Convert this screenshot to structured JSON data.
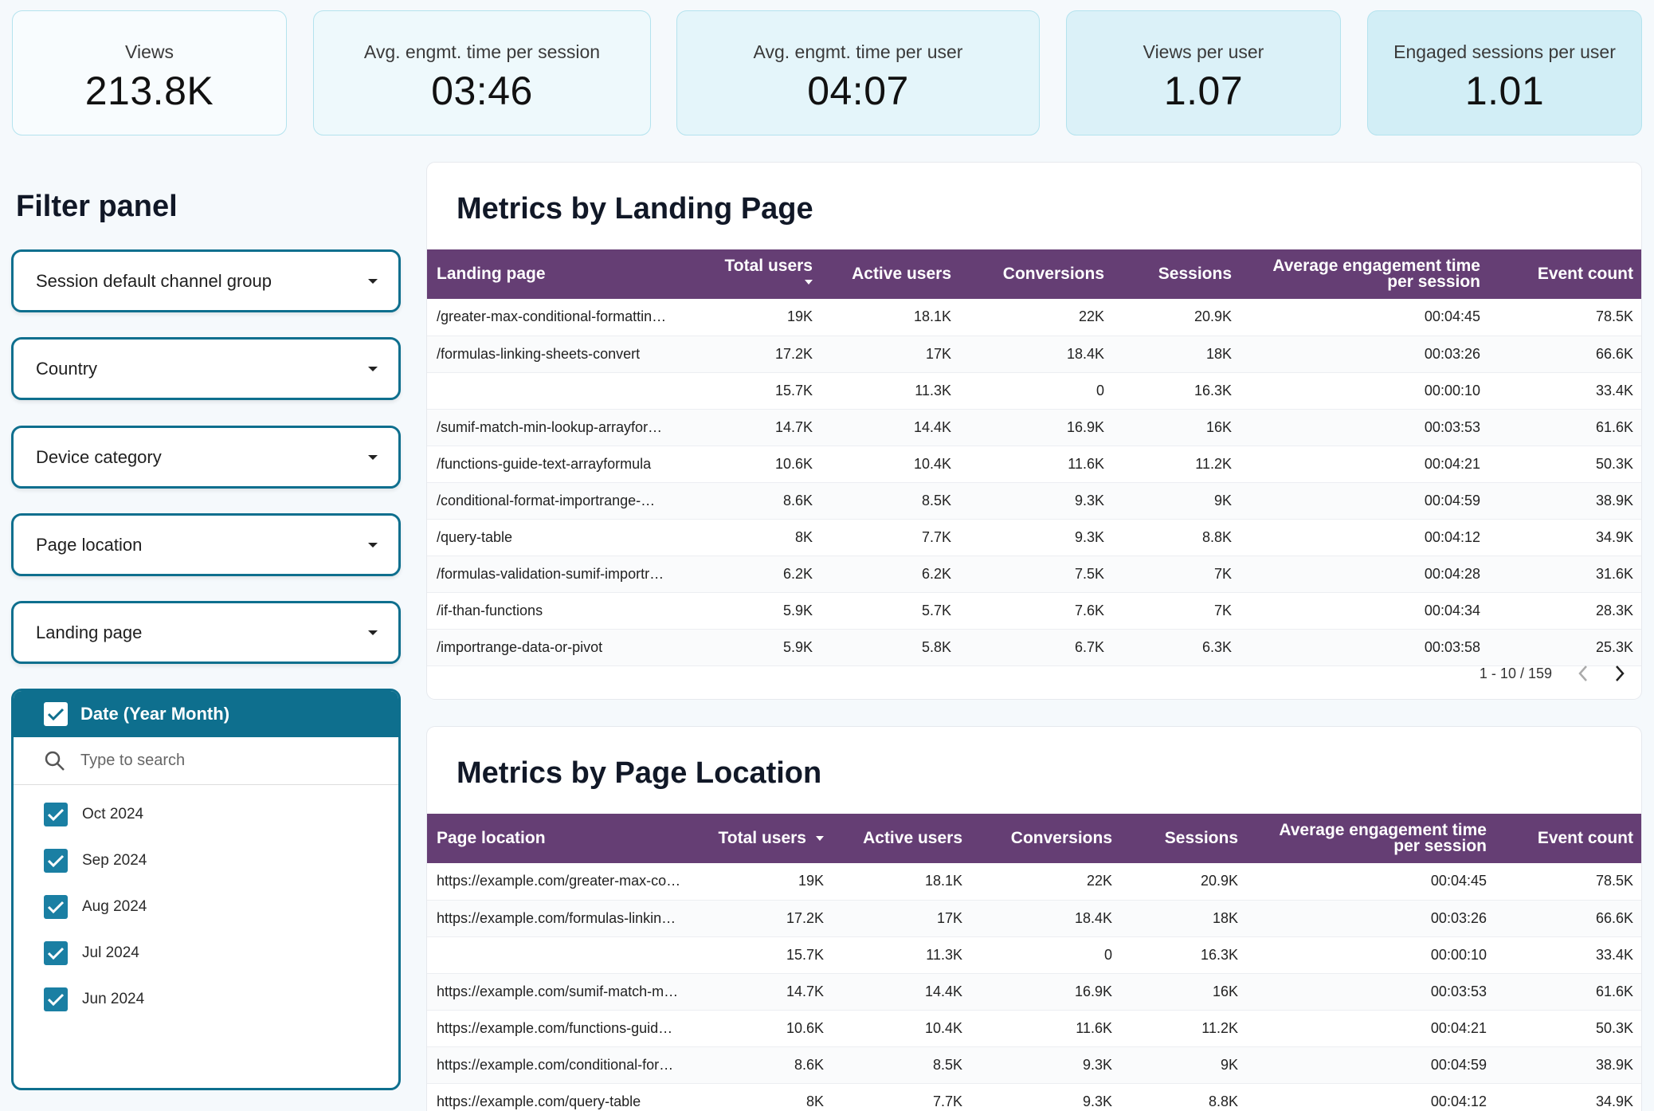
{
  "kpis": [
    {
      "label": "Views",
      "value": "213.8K",
      "color": "#f8fcfe"
    },
    {
      "label": "Avg. engmt. time per session",
      "value": "03:46",
      "color": "#eef9fc"
    },
    {
      "label": "Avg. engmt. time per user",
      "value": "04:07",
      "color": "#e4f5fa"
    },
    {
      "label": "Views per user",
      "value": "1.07",
      "color": "#dbf1f8"
    },
    {
      "label": "Engaged sessions per user",
      "value": "1.01",
      "color": "#d2eef6"
    }
  ],
  "filter_panel": {
    "title": "Filter panel",
    "dropdowns": [
      "Session default channel group",
      "Country",
      "Device category",
      "Page location",
      "Landing page"
    ],
    "date": {
      "header": "Date (Year Month)",
      "search_placeholder": "Type to search",
      "options": [
        "Oct 2024",
        "Sep 2024",
        "Aug 2024",
        "Jul 2024",
        "Jun 2024"
      ]
    }
  },
  "landing_table": {
    "title": "Metrics by Landing Page",
    "columns": [
      "Landing page",
      "Total users",
      "Active users",
      "Conversions",
      "Sessions",
      "Average engagement time per session",
      "Event count"
    ],
    "rows": [
      [
        "/greater-max-conditional-formattin…",
        "19K",
        "18.1K",
        "22K",
        "20.9K",
        "00:04:45",
        "78.5K"
      ],
      [
        "/formulas-linking-sheets-convert",
        "17.2K",
        "17K",
        "18.4K",
        "18K",
        "00:03:26",
        "66.6K"
      ],
      [
        "",
        "15.7K",
        "11.3K",
        "0",
        "16.3K",
        "00:00:10",
        "33.4K"
      ],
      [
        "/sumif-match-min-lookup-arrayfor…",
        "14.7K",
        "14.4K",
        "16.9K",
        "16K",
        "00:03:53",
        "61.6K"
      ],
      [
        "/functions-guide-text-arrayformula",
        "10.6K",
        "10.4K",
        "11.6K",
        "11.2K",
        "00:04:21",
        "50.3K"
      ],
      [
        "/conditional-format-importrange-…",
        "8.6K",
        "8.5K",
        "9.3K",
        "9K",
        "00:04:59",
        "38.9K"
      ],
      [
        "/query-table",
        "8K",
        "7.7K",
        "9.3K",
        "8.8K",
        "00:04:12",
        "34.9K"
      ],
      [
        "/formulas-validation-sumif-importr…",
        "6.2K",
        "6.2K",
        "7.5K",
        "7K",
        "00:04:28",
        "31.6K"
      ],
      [
        "/if-than-functions",
        "5.9K",
        "5.7K",
        "7.6K",
        "7K",
        "00:04:34",
        "28.3K"
      ],
      [
        "/importrange-data-or-pivot",
        "5.9K",
        "5.8K",
        "6.7K",
        "6.3K",
        "00:03:58",
        "25.3K"
      ]
    ],
    "pagination": "1 - 10 / 159"
  },
  "location_table": {
    "title": "Metrics by Page Location",
    "columns": [
      "Page location",
      "Total users",
      "Active users",
      "Conversions",
      "Sessions",
      "Average engagement time per session",
      "Event count"
    ],
    "rows": [
      [
        "https://example.com/greater-max-co…",
        "19K",
        "18.1K",
        "22K",
        "20.9K",
        "00:04:45",
        "78.5K"
      ],
      [
        "https://example.com/formulas-linkin…",
        "17.2K",
        "17K",
        "18.4K",
        "18K",
        "00:03:26",
        "66.6K"
      ],
      [
        "",
        "15.7K",
        "11.3K",
        "0",
        "16.3K",
        "00:00:10",
        "33.4K"
      ],
      [
        "https://example.com/sumif-match-m…",
        "14.7K",
        "14.4K",
        "16.9K",
        "16K",
        "00:03:53",
        "61.6K"
      ],
      [
        "https://example.com/functions-guid…",
        "10.6K",
        "10.4K",
        "11.6K",
        "11.2K",
        "00:04:21",
        "50.3K"
      ],
      [
        "https://example.com/conditional-for…",
        "8.6K",
        "8.5K",
        "9.3K",
        "9K",
        "00:04:59",
        "38.9K"
      ],
      [
        "https://example.com/query-table",
        "8K",
        "7.7K",
        "9.3K",
        "8.8K",
        "00:04:12",
        "34.9K"
      ]
    ]
  },
  "colors": {
    "accent": "#0e6f8e",
    "table_header": "#653e74",
    "checkbox": "#1a7fa3"
  }
}
